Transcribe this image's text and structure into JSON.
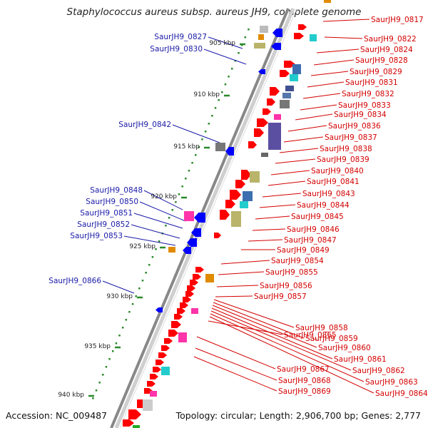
{
  "title": "Staphylococcus aureus subsp. aureus JH9, complete genome",
  "footer": {
    "accession": "Accession: NC_009487",
    "topology": "Topology: circular; Length: 2,906,700 bp; Genes: 2,777"
  },
  "colors": {
    "forward_gene": "#ff0000",
    "reverse_gene": "#0000ff",
    "label_red": "#d40000",
    "label_blue": "#1a1aa8",
    "backbone": "#888888",
    "scale_dots": "#2a8a2a"
  },
  "scale_labels": [
    "905 kbp",
    "910 kbp",
    "915 kbp",
    "920 kbp",
    "925 kbp",
    "930 kbp",
    "935 kbp",
    "940 kbp"
  ],
  "right_labels": [
    "SaurJH9_0817",
    "SaurJH9_0822",
    "SaurJH9_0824",
    "SaurJH9_0828",
    "SaurJH9_0829",
    "SaurJH9_0831",
    "SaurJH9_0832",
    "SaurJH9_0833",
    "SaurJH9_0834",
    "SaurJH9_0836",
    "SaurJH9_0837",
    "SaurJH9_0838",
    "SaurJH9_0839",
    "SaurJH9_0840",
    "SaurJH9_0841",
    "SaurJH9_0843",
    "SaurJH9_0844",
    "SaurJH9_0845",
    "SaurJH9_0846",
    "SaurJH9_0847",
    "SaurJH9_0849",
    "SaurJH9_0854",
    "SaurJH9_0855",
    "SaurJH9_0856",
    "SaurJH9_0857",
    "SaurJH9_0858",
    "SaurJH9_0859",
    "SaurJH9_0860",
    "SaurJH9_0861",
    "SaurJH9_0862",
    "SaurJH9_0863",
    "SaurJH9_0864",
    "SaurJH9_0865",
    "SaurJH9_0867",
    "SaurJH9_0868",
    "SaurJH9_0869"
  ],
  "left_labels": [
    "SaurJH9_0827",
    "SaurJH9_0830",
    "SaurJH9_0842",
    "SaurJH9_0848",
    "SaurJH9_0850",
    "SaurJH9_0851",
    "SaurJH9_0852",
    "SaurJH9_0853",
    "SaurJH9_0866"
  ]
}
